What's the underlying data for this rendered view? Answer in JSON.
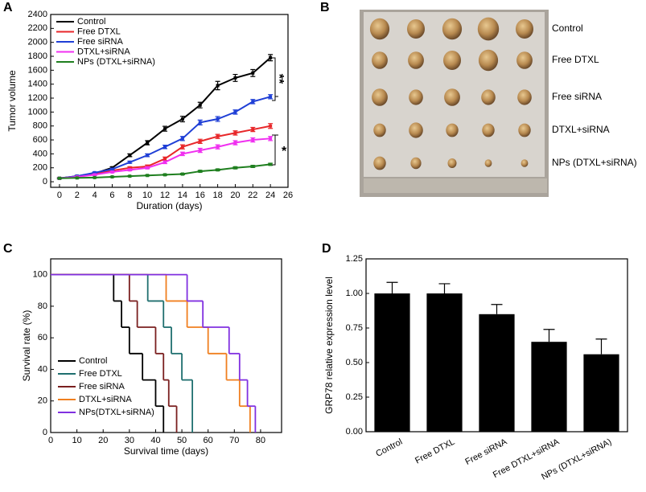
{
  "chart_data": [
    {
      "panel": "A",
      "type": "line",
      "x_label": "Duration (days)",
      "y_label": "Tumor volume",
      "x": [
        0,
        2,
        4,
        6,
        8,
        10,
        12,
        14,
        16,
        18,
        20,
        22,
        24
      ],
      "xlim": [
        -1,
        26
      ],
      "xticks": [
        0,
        2,
        4,
        6,
        8,
        10,
        12,
        14,
        16,
        18,
        20,
        22,
        24,
        26
      ],
      "ylim": [
        -80,
        2400
      ],
      "yticks": [
        0,
        200,
        400,
        600,
        800,
        1000,
        1200,
        1400,
        1600,
        1800,
        2000,
        2200,
        2400
      ],
      "legend": "upper left",
      "series": [
        {
          "name": "Control",
          "color": "#000000",
          "values": [
            50,
            80,
            120,
            200,
            380,
            560,
            760,
            900,
            1100,
            1380,
            1490,
            1560,
            1780
          ],
          "errors": [
            10,
            10,
            12,
            15,
            20,
            30,
            35,
            40,
            40,
            60,
            50,
            50,
            45
          ]
        },
        {
          "name": "Free DTXL",
          "color": "#e8272a",
          "values": [
            50,
            75,
            110,
            160,
            200,
            220,
            330,
            500,
            580,
            650,
            700,
            750,
            800
          ],
          "errors": [
            8,
            8,
            10,
            12,
            15,
            20,
            25,
            30,
            30,
            30,
            30,
            30,
            35
          ]
        },
        {
          "name": "Free siRNA",
          "color": "#1f3fd6",
          "values": [
            50,
            80,
            130,
            180,
            280,
            380,
            500,
            620,
            850,
            900,
            1000,
            1150,
            1220
          ],
          "errors": [
            8,
            10,
            10,
            12,
            15,
            20,
            25,
            30,
            35,
            35,
            30,
            30,
            30
          ]
        },
        {
          "name": "DTXL+siRNA",
          "color": "#f030f0",
          "values": [
            50,
            70,
            100,
            140,
            170,
            200,
            280,
            400,
            450,
            500,
            560,
            600,
            620
          ],
          "errors": [
            8,
            8,
            10,
            10,
            12,
            15,
            20,
            25,
            30,
            30,
            30,
            30,
            30
          ]
        },
        {
          "name": "NPs (DTXL+siRNA)",
          "color": "#1f7f1f",
          "values": [
            50,
            55,
            60,
            70,
            80,
            90,
            100,
            110,
            150,
            170,
            200,
            220,
            250
          ],
          "errors": [
            5,
            5,
            5,
            6,
            6,
            8,
            8,
            10,
            12,
            12,
            15,
            15,
            15
          ]
        }
      ],
      "annotations": [
        "**",
        "*"
      ]
    },
    {
      "panel": "B",
      "type": "image",
      "row_labels": [
        "Control",
        "Free DTXL",
        "Free siRNA",
        "DTXL+siRNA",
        "NPs (DTXL+siRNA)"
      ]
    },
    {
      "panel": "C",
      "type": "step",
      "x_label": "Survival time (days)",
      "y_label": "Survival rate (%)",
      "xlim": [
        0,
        88
      ],
      "xticks": [
        0,
        10,
        20,
        30,
        40,
        50,
        60,
        70,
        80
      ],
      "ylim": [
        0,
        110
      ],
      "yticks": [
        0,
        20,
        40,
        60,
        80,
        100
      ],
      "legend": "lower left",
      "series": [
        {
          "name": "Control",
          "color": "#000000",
          "x": [
            0,
            24,
            27,
            30,
            35,
            40,
            43
          ],
          "values": [
            100,
            83.3,
            66.7,
            50,
            33.3,
            16.7,
            0
          ]
        },
        {
          "name": "Free DTXL",
          "color": "#1f6f6f",
          "x": [
            0,
            37,
            43,
            46,
            50,
            54
          ],
          "values": [
            100,
            83.3,
            66.7,
            50,
            33.3,
            0
          ]
        },
        {
          "name": "Free siRNA",
          "color": "#7a1f1f",
          "x": [
            0,
            30,
            33,
            40,
            43,
            45,
            48
          ],
          "values": [
            100,
            83.3,
            66.7,
            50,
            33.3,
            16.7,
            0
          ]
        },
        {
          "name": "DTXL+siRNA",
          "color": "#f07f1f",
          "x": [
            0,
            44,
            52,
            60,
            67,
            72,
            76
          ],
          "values": [
            100,
            83.3,
            66.7,
            50,
            33.3,
            16.7,
            0
          ]
        },
        {
          "name": "NPs(DTXL+siRNA)",
          "color": "#8030e0",
          "x": [
            0,
            52,
            58,
            68,
            72,
            75,
            78
          ],
          "values": [
            100,
            83.3,
            66.7,
            50,
            33.3,
            16.7,
            0
          ]
        }
      ]
    },
    {
      "panel": "D",
      "type": "bar",
      "y_label": "GRP78 relative expression level",
      "color": "#000000",
      "categories": [
        "Control",
        "Free DTXL",
        "Free siRNA",
        "Free DTXL+siRNA",
        "NPs (DTXL+siRNA)"
      ],
      "values": [
        1.0,
        1.0,
        0.85,
        0.65,
        0.56
      ],
      "errors": [
        0.08,
        0.07,
        0.07,
        0.09,
        0.11
      ],
      "ylim": [
        0,
        1.25
      ],
      "yticks": [
        {
          "value": 0,
          "label": "0.00"
        },
        {
          "value": 0.25,
          "label": "0.25"
        },
        {
          "value": 0.5,
          "label": "0.50"
        },
        {
          "value": 0.75,
          "label": "0.75"
        },
        {
          "value": 1,
          "label": "1.00"
        },
        {
          "value": 1.25,
          "label": "1.25"
        }
      ]
    }
  ]
}
